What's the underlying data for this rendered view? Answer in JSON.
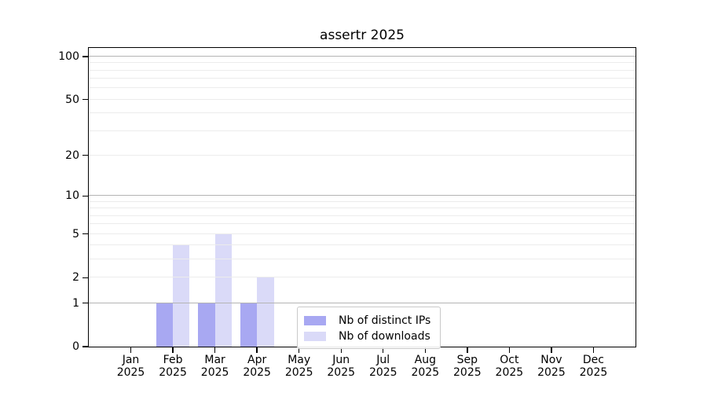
{
  "chart_data": {
    "type": "bar",
    "title": "assertr 2025",
    "months": [
      "Jan",
      "Feb",
      "Mar",
      "Apr",
      "May",
      "Jun",
      "Jul",
      "Aug",
      "Sep",
      "Oct",
      "Nov",
      "Dec"
    ],
    "year_label": "2025",
    "series": [
      {
        "name": "Nb of distinct IPs",
        "color": "#a8a8f2",
        "values": [
          0,
          1,
          1,
          1,
          0,
          0,
          0,
          0,
          0,
          0,
          0,
          0
        ]
      },
      {
        "name": "Nb of downloads",
        "color": "#dadaf8",
        "values": [
          0,
          4,
          5,
          2,
          0,
          0,
          0,
          0,
          0,
          0,
          0,
          0
        ]
      }
    ],
    "y_ticks": [
      0,
      1,
      2,
      5,
      10,
      20,
      50,
      100
    ],
    "ylim": [
      0,
      115
    ],
    "y_scale": "log10(1+v)",
    "grid": true,
    "legend_position": "lower-center"
  }
}
